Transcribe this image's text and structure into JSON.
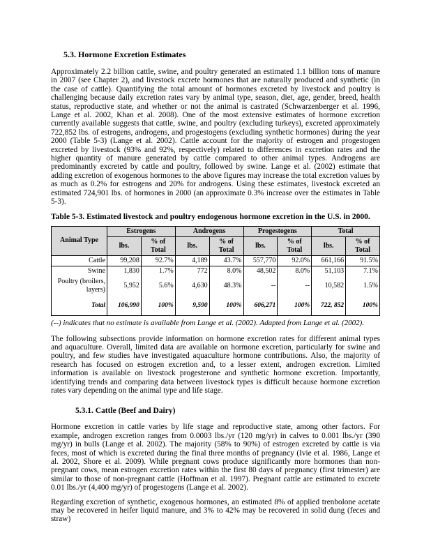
{
  "section_heading": "5.3. Hormone Excretion Estimates",
  "paragraphs": {
    "p1": "Approximately 2.2 billion cattle, swine, and poultry generated an estimated 1.1 billion tons of manure in 2007 (see Chapter 2), and livestock excrete hormones that are naturally produced and synthetic (in the case of cattle). Quantifying the total amount of hormones excreted by livestock and poultry is challenging because daily excretion rates vary by animal type, season, diet, age, gender, breed, health status, reproductive state, and whether or not the animal is castrated (Schwarzenberger et al. 1996, Lange et al. 2002, Khan et al. 2008). One of the most extensive estimates of hormone excretion currently available suggests that cattle, swine, and poultry (excluding turkeys), excreted approximately 722,852 lbs. of estrogens, androgens, and progestogens (excluding synthetic hormones) during the year 2000 (Table 5-3) (Lange et al. 2002). Cattle account for the majority of estrogen and progestogen excreted by livestock (93% and 92%, respectively) related to differences in excretion rates and the higher quantity of manure generated by cattle compared to other animal types. Androgens are predominantly excreted by cattle and poultry, followed by swine. Lange et al. (2002) estimate that adding excretion of exogenous hormones to the above figures may increase the total excretion values by as much as 0.2% for estrogens and 20% for androgens. Using these estimates, livestock excreted an estimated 724,901 lbs. of hormones in 2000 (an approximate 0.3% increase over the estimates in Table 5-3).",
    "p2": "The following subsections provide information on hormone excretion rates for different animal types and aquaculture. Overall, limited data are available on hormone excretion, particularly for swine and poultry, and few studies have investigated aquaculture hormone contributions. Also, the majority of research has focused on estrogen excretion and, to a lesser extent, androgen excretion. Limited information is available on livestock progesterone and synthetic hormone excretion. Importantly, identifying trends and comparing data between livestock types is difficult because hormone excretion rates vary depending on the animal type and life stage.",
    "p3": "Hormone excretion in cattle varies by life stage and reproductive state, among other factors. For example, androgen excretion ranges from 0.0003 lbs./yr (120 mg/yr) in calves to 0.001 lbs./yr (390 mg/yr) in bulls (Lange et al. 2002). The majority (58% to 90%) of estrogen excreted by cattle is via feces, most of which is excreted during the final three months of pregnancy (Ivie et al. 1986, Lange et al. 2002, Shore et al. 2009). While pregnant cows produce significantly more hormones than non-pregnant cows, mean estrogen excretion rates within the first 80 days of pregnancy (first trimester) are similar to those of non-pregnant cattle (Hoffman et al. 1997). Pregnant cattle are estimated to excrete 0.01 lbs./yr (4,400 mg/yr) of progestogens (Lange et al. 2002).",
    "p4": "Regarding excretion of synthetic, exogenous hormones, an estimated 8% of applied trenbolone acetate may be recovered in heifer liquid manure, and 3% to 42% may be recovered in solid dung (feces and straw)"
  },
  "table": {
    "caption": "Table 5-3. Estimated livestock and poultry endogenous hormone excretion in the U.S. in 2000.",
    "col_animal": "Animal Type",
    "groups": [
      "Estrogens",
      "Androgens",
      "Progestogens",
      "Total"
    ],
    "sub": [
      "lbs.",
      "% of Total"
    ],
    "rows": [
      {
        "animal": "Cattle",
        "v": [
          "99,208",
          "92.7%",
          "4,189",
          "43.7%",
          "557,770",
          "92.0%",
          "661,166",
          "91.5%"
        ]
      },
      {
        "animal": "Swine",
        "v": [
          "1,830",
          "1.7%",
          "772",
          "8.0%",
          "48,502",
          "8.0%",
          "51,103",
          "7.1%"
        ]
      },
      {
        "animal": "Poultry (broilers, layers)",
        "v": [
          "5,952",
          "5.6%",
          "4,630",
          "48.3%",
          "--",
          "--",
          "10,582",
          "1.5%"
        ]
      },
      {
        "animal": "Total",
        "v": [
          "106,990",
          "100%",
          "9,590",
          "100%",
          "606,271",
          "100%",
          "722, 852",
          "100%"
        ]
      }
    ],
    "footnote": "(--) indicates that no estimate is available from Lange et al. (2002). Adapted from Lange et al. (2002)."
  },
  "subsection_heading": "5.3.1. Cattle (Beef and Dairy)"
}
